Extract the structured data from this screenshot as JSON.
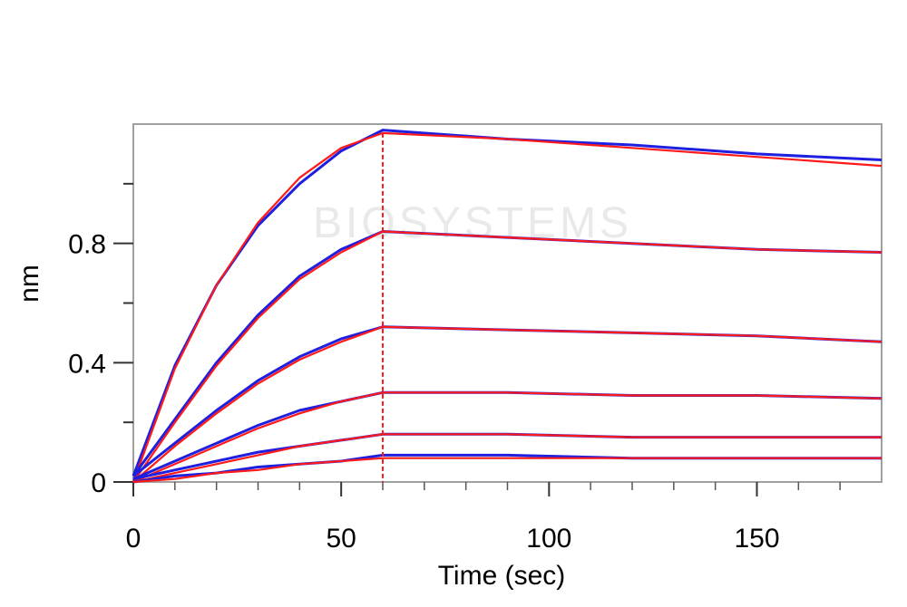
{
  "chart_data": {
    "type": "line",
    "title": "",
    "xlabel": "Time (sec)",
    "ylabel": "nm",
    "xlim": [
      0,
      180
    ],
    "ylim": [
      0,
      1.2
    ],
    "xticks": [
      0,
      50,
      100,
      150
    ],
    "yticks": [
      0,
      0.4,
      0.8
    ],
    "minor_xticks": [
      10,
      20,
      30,
      40,
      60,
      70,
      80,
      90,
      110,
      120,
      130,
      140,
      160,
      170
    ],
    "minor_yticks": [
      0.2,
      0.6,
      1.0
    ],
    "grid": false,
    "legend": "none",
    "association_end": 60,
    "watermark": "BIOSYSTEMS",
    "colors": {
      "measured": "#1f1fe0",
      "fit": "#ff1a1a",
      "frame": "#a0a0a0"
    },
    "series": [
      {
        "curve": "measured",
        "x": [
          0,
          10,
          20,
          30,
          40,
          50,
          60,
          90,
          120,
          150,
          180
        ],
        "y": [
          0.02,
          0.39,
          0.66,
          0.86,
          1.0,
          1.11,
          1.18,
          1.15,
          1.13,
          1.1,
          1.08
        ]
      },
      {
        "curve": "fit",
        "x": [
          0,
          10,
          20,
          30,
          40,
          50,
          60,
          90,
          120,
          150,
          180
        ],
        "y": [
          0.0,
          0.38,
          0.66,
          0.87,
          1.02,
          1.12,
          1.17,
          1.15,
          1.12,
          1.09,
          1.06
        ]
      },
      {
        "curve": "measured",
        "x": [
          0,
          10,
          20,
          30,
          40,
          50,
          60,
          90,
          120,
          150,
          180
        ],
        "y": [
          0.02,
          0.21,
          0.4,
          0.56,
          0.69,
          0.78,
          0.84,
          0.82,
          0.8,
          0.78,
          0.77
        ]
      },
      {
        "curve": "fit",
        "x": [
          0,
          10,
          20,
          30,
          40,
          50,
          60,
          90,
          120,
          150,
          180
        ],
        "y": [
          0.0,
          0.2,
          0.39,
          0.55,
          0.68,
          0.77,
          0.84,
          0.82,
          0.8,
          0.78,
          0.77
        ]
      },
      {
        "curve": "measured",
        "x": [
          0,
          10,
          20,
          30,
          40,
          50,
          60,
          90,
          120,
          150,
          180
        ],
        "y": [
          0.02,
          0.13,
          0.24,
          0.34,
          0.42,
          0.48,
          0.52,
          0.51,
          0.5,
          0.49,
          0.47
        ]
      },
      {
        "curve": "fit",
        "x": [
          0,
          10,
          20,
          30,
          40,
          50,
          60,
          90,
          120,
          150,
          180
        ],
        "y": [
          0.0,
          0.12,
          0.23,
          0.33,
          0.41,
          0.47,
          0.52,
          0.51,
          0.5,
          0.49,
          0.47
        ]
      },
      {
        "curve": "measured",
        "x": [
          0,
          10,
          20,
          30,
          40,
          50,
          60,
          90,
          120,
          150,
          180
        ],
        "y": [
          0.01,
          0.07,
          0.13,
          0.19,
          0.24,
          0.27,
          0.3,
          0.3,
          0.29,
          0.29,
          0.28
        ]
      },
      {
        "curve": "fit",
        "x": [
          0,
          10,
          20,
          30,
          40,
          50,
          60,
          90,
          120,
          150,
          180
        ],
        "y": [
          0.0,
          0.06,
          0.12,
          0.18,
          0.23,
          0.27,
          0.3,
          0.3,
          0.29,
          0.29,
          0.28
        ]
      },
      {
        "curve": "measured",
        "x": [
          0,
          10,
          20,
          30,
          40,
          50,
          60,
          90,
          120,
          150,
          180
        ],
        "y": [
          0.01,
          0.04,
          0.07,
          0.1,
          0.12,
          0.14,
          0.16,
          0.16,
          0.15,
          0.15,
          0.15
        ]
      },
      {
        "curve": "fit",
        "x": [
          0,
          10,
          20,
          30,
          40,
          50,
          60,
          90,
          120,
          150,
          180
        ],
        "y": [
          0.0,
          0.03,
          0.06,
          0.09,
          0.12,
          0.14,
          0.16,
          0.16,
          0.15,
          0.15,
          0.15
        ]
      },
      {
        "curve": "measured",
        "x": [
          0,
          10,
          20,
          30,
          40,
          50,
          60,
          90,
          120,
          150,
          180
        ],
        "y": [
          0.0,
          0.02,
          0.03,
          0.05,
          0.06,
          0.07,
          0.09,
          0.09,
          0.08,
          0.08,
          0.08
        ]
      },
      {
        "curve": "fit",
        "x": [
          0,
          10,
          20,
          30,
          40,
          50,
          60,
          90,
          120,
          150,
          180
        ],
        "y": [
          0.0,
          0.01,
          0.03,
          0.04,
          0.06,
          0.07,
          0.08,
          0.08,
          0.08,
          0.08,
          0.08
        ]
      }
    ]
  }
}
